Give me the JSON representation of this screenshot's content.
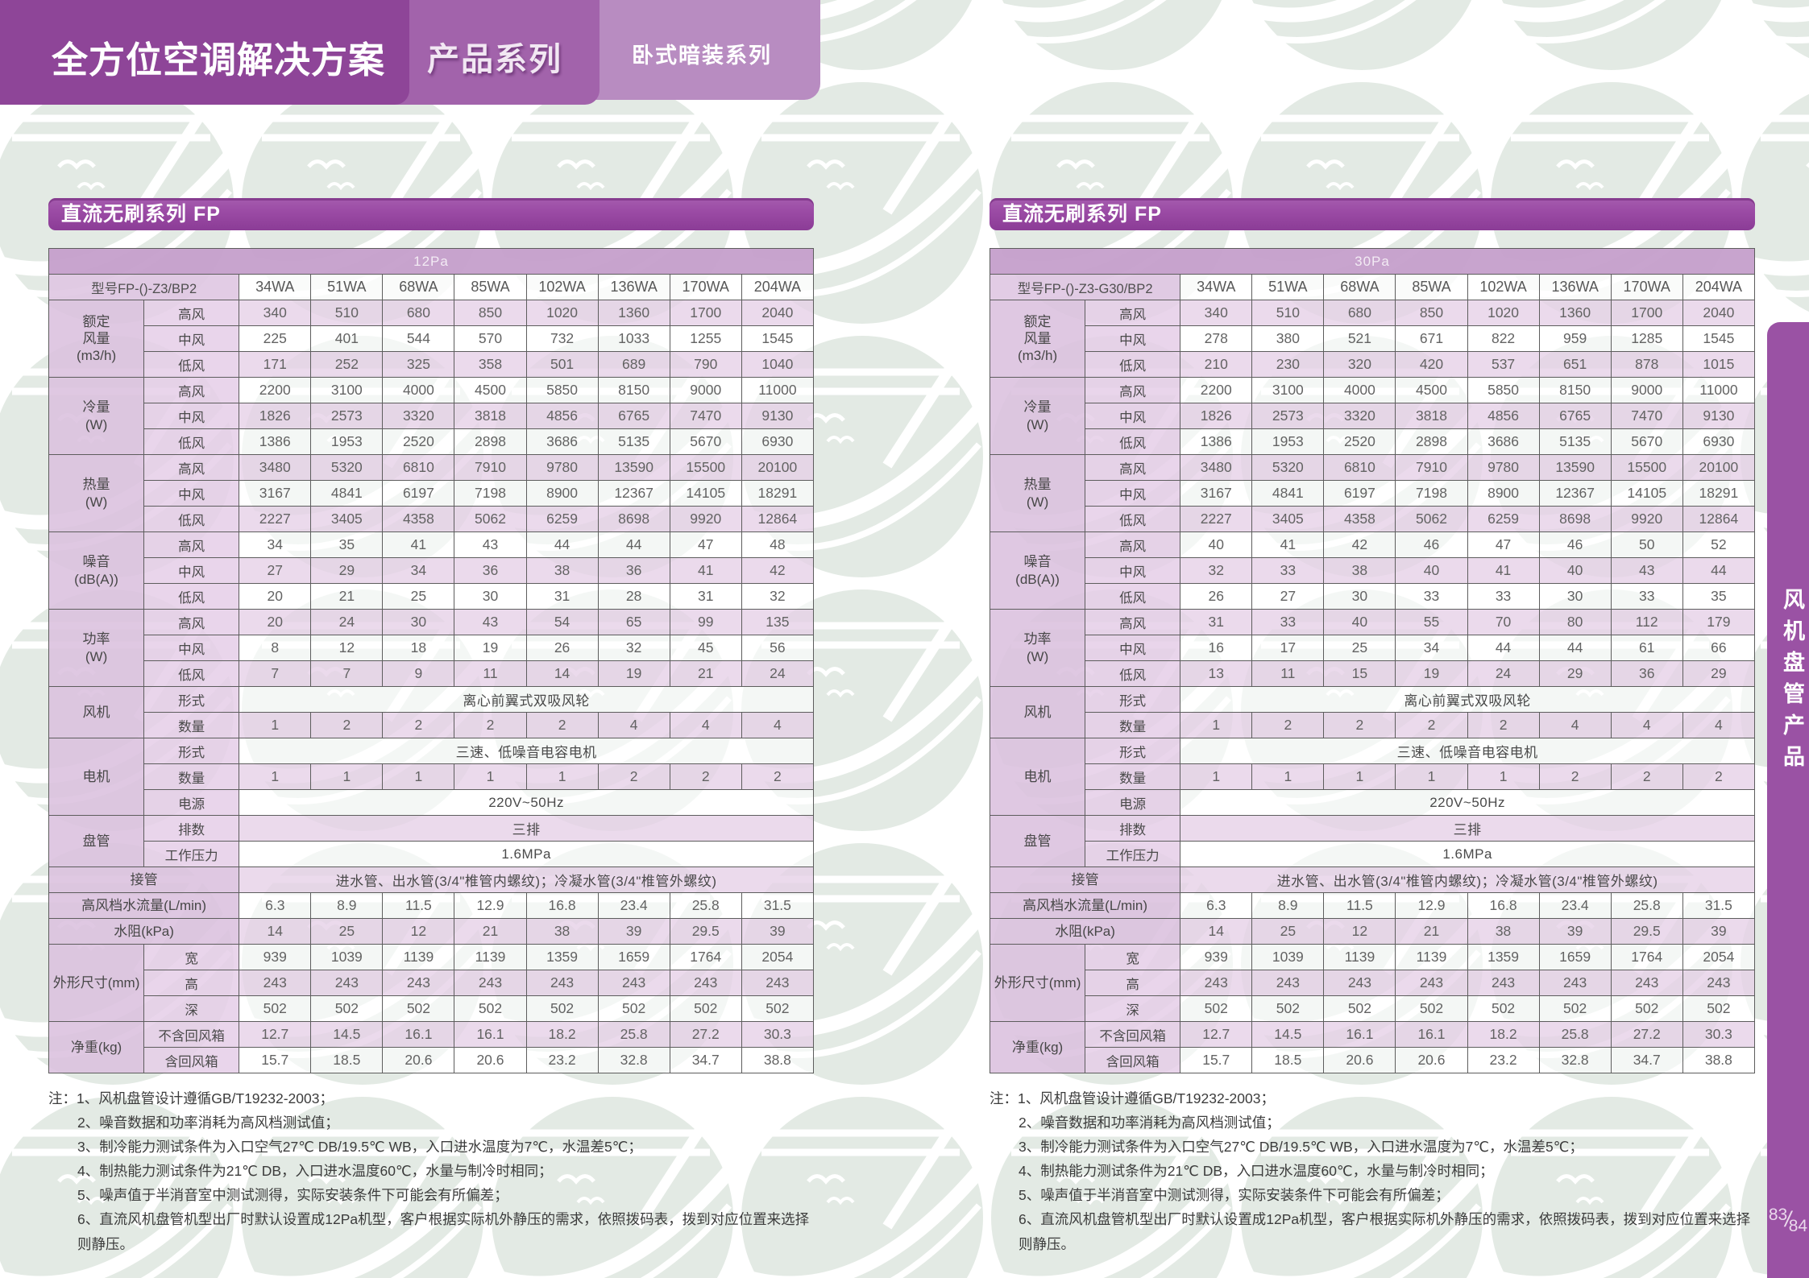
{
  "header": {
    "title": "全方位空调解决方案",
    "subtitle": "产品系列",
    "badge": "卧式暗装系列"
  },
  "side_tab": {
    "label": "风机盘管产品",
    "page_top": "83",
    "page_bottom": "84"
  },
  "notes": {
    "prefix": "注：",
    "items": [
      "1、风机盘管设计遵循GB/T19232-2003；",
      "2、噪音数据和功率消耗为高风档测试值；",
      "3、制冷能力测试条件为入口空气27℃ DB/19.5℃ WB，入口进水温度为7℃，水温差5℃；",
      "4、制热能力测试条件为21℃ DB，入口进水温度60℃，水量与制冷时相同；",
      "5、噪声值于半消音室中测试测得，实际安装条件下可能会有所偏差；",
      "6、直流风机盘管机型出厂时默认设置成12Pa机型，客户根据实际机外静压的需求，依照拨码表，拨到对应位置来选择则静压。"
    ]
  },
  "tables": [
    {
      "title": "直流无刷系列 FP",
      "pressure": "12Pa",
      "model": "型号FP-()-Z3/BP2",
      "columns": [
        "34WA",
        "51WA",
        "68WA",
        "85WA",
        "102WA",
        "136WA",
        "170WA",
        "204WA"
      ],
      "groups": [
        {
          "label": "额定\n风量\n(m3/h)",
          "rows": [
            {
              "sub": "高风",
              "values": [
                "340",
                "510",
                "680",
                "850",
                "1020",
                "1360",
                "1700",
                "2040"
              ]
            },
            {
              "sub": "中风",
              "values": [
                "225",
                "401",
                "544",
                "570",
                "732",
                "1033",
                "1255",
                "1545"
              ]
            },
            {
              "sub": "低风",
              "values": [
                "171",
                "252",
                "325",
                "358",
                "501",
                "689",
                "790",
                "1040"
              ]
            }
          ]
        },
        {
          "label": "冷量\n(W)",
          "rows": [
            {
              "sub": "高风",
              "values": [
                "2200",
                "3100",
                "4000",
                "4500",
                "5850",
                "8150",
                "9000",
                "11000"
              ]
            },
            {
              "sub": "中风",
              "values": [
                "1826",
                "2573",
                "3320",
                "3818",
                "4856",
                "6765",
                "7470",
                "9130"
              ]
            },
            {
              "sub": "低风",
              "values": [
                "1386",
                "1953",
                "2520",
                "2898",
                "3686",
                "5135",
                "5670",
                "6930"
              ]
            }
          ]
        },
        {
          "label": "热量\n(W)",
          "rows": [
            {
              "sub": "高风",
              "values": [
                "3480",
                "5320",
                "6810",
                "7910",
                "9780",
                "13590",
                "15500",
                "20100"
              ]
            },
            {
              "sub": "中风",
              "values": [
                "3167",
                "4841",
                "6197",
                "7198",
                "8900",
                "12367",
                "14105",
                "18291"
              ]
            },
            {
              "sub": "低风",
              "values": [
                "2227",
                "3405",
                "4358",
                "5062",
                "6259",
                "8698",
                "9920",
                "12864"
              ]
            }
          ]
        },
        {
          "label": "噪音\n(dB(A))",
          "rows": [
            {
              "sub": "高风",
              "values": [
                "34",
                "35",
                "41",
                "43",
                "44",
                "44",
                "47",
                "48"
              ]
            },
            {
              "sub": "中风",
              "values": [
                "27",
                "29",
                "34",
                "36",
                "38",
                "36",
                "41",
                "42"
              ]
            },
            {
              "sub": "低风",
              "values": [
                "20",
                "21",
                "25",
                "30",
                "31",
                "28",
                "31",
                "32"
              ]
            }
          ]
        },
        {
          "label": "功率\n(W)",
          "rows": [
            {
              "sub": "高风",
              "values": [
                "20",
                "24",
                "30",
                "43",
                "54",
                "65",
                "99",
                "135"
              ]
            },
            {
              "sub": "中风",
              "values": [
                "8",
                "12",
                "18",
                "19",
                "26",
                "32",
                "45",
                "56"
              ]
            },
            {
              "sub": "低风",
              "values": [
                "7",
                "7",
                "9",
                "11",
                "14",
                "19",
                "21",
                "24"
              ]
            }
          ]
        },
        {
          "label": "风机",
          "rows": [
            {
              "sub": "形式",
              "span": "离心前翼式双吸风轮"
            },
            {
              "sub": "数量",
              "values": [
                "1",
                "2",
                "2",
                "2",
                "2",
                "4",
                "4",
                "4"
              ]
            }
          ]
        },
        {
          "label": "电机",
          "rows": [
            {
              "sub": "形式",
              "span": "三速、低噪音电容电机"
            },
            {
              "sub": "数量",
              "values": [
                "1",
                "1",
                "1",
                "1",
                "1",
                "2",
                "2",
                "2"
              ]
            },
            {
              "sub": "电源",
              "span": "220V~50Hz"
            }
          ]
        },
        {
          "label": "盘管",
          "rows": [
            {
              "sub": "排数",
              "span": "三排"
            },
            {
              "sub": "工作压力",
              "span": "1.6MPa"
            }
          ]
        },
        {
          "label": "接管",
          "wide": true,
          "span": "进水管、出水管(3/4\"椎管内螺纹)；冷凝水管(3/4\"椎管外螺纹)"
        },
        {
          "label": "高风档水流量(L/min)",
          "wide": true,
          "values": [
            "6.3",
            "8.9",
            "11.5",
            "12.9",
            "16.8",
            "23.4",
            "25.8",
            "31.5"
          ]
        },
        {
          "label": "水阻(kPa)",
          "wide": true,
          "values": [
            "14",
            "25",
            "12",
            "21",
            "38",
            "39",
            "29.5",
            "39"
          ]
        },
        {
          "label": "外形尺寸(mm)",
          "rows": [
            {
              "sub": "宽",
              "values": [
                "939",
                "1039",
                "1139",
                "1139",
                "1359",
                "1659",
                "1764",
                "2054"
              ]
            },
            {
              "sub": "高",
              "values": [
                "243",
                "243",
                "243",
                "243",
                "243",
                "243",
                "243",
                "243"
              ]
            },
            {
              "sub": "深",
              "values": [
                "502",
                "502",
                "502",
                "502",
                "502",
                "502",
                "502",
                "502"
              ]
            }
          ]
        },
        {
          "label": "净重(kg)",
          "rows": [
            {
              "sub": "不含回风箱",
              "values": [
                "12.7",
                "14.5",
                "16.1",
                "16.1",
                "18.2",
                "25.8",
                "27.2",
                "30.3"
              ]
            },
            {
              "sub": "含回风箱",
              "values": [
                "15.7",
                "18.5",
                "20.6",
                "20.6",
                "23.2",
                "32.8",
                "34.7",
                "38.8"
              ]
            }
          ]
        }
      ]
    },
    {
      "title": "直流无刷系列 FP",
      "pressure": "30Pa",
      "model": "型号FP-()-Z3-G30/BP2",
      "columns": [
        "34WA",
        "51WA",
        "68WA",
        "85WA",
        "102WA",
        "136WA",
        "170WA",
        "204WA"
      ],
      "groups": [
        {
          "label": "额定\n风量\n(m3/h)",
          "rows": [
            {
              "sub": "高风",
              "values": [
                "340",
                "510",
                "680",
                "850",
                "1020",
                "1360",
                "1700",
                "2040"
              ]
            },
            {
              "sub": "中风",
              "values": [
                "278",
                "380",
                "521",
                "671",
                "822",
                "959",
                "1285",
                "1545"
              ]
            },
            {
              "sub": "低风",
              "values": [
                "210",
                "230",
                "320",
                "420",
                "537",
                "651",
                "878",
                "1015"
              ]
            }
          ]
        },
        {
          "label": "冷量\n(W)",
          "rows": [
            {
              "sub": "高风",
              "values": [
                "2200",
                "3100",
                "4000",
                "4500",
                "5850",
                "8150",
                "9000",
                "11000"
              ]
            },
            {
              "sub": "中风",
              "values": [
                "1826",
                "2573",
                "3320",
                "3818",
                "4856",
                "6765",
                "7470",
                "9130"
              ]
            },
            {
              "sub": "低风",
              "values": [
                "1386",
                "1953",
                "2520",
                "2898",
                "3686",
                "5135",
                "5670",
                "6930"
              ]
            }
          ]
        },
        {
          "label": "热量\n(W)",
          "rows": [
            {
              "sub": "高风",
              "values": [
                "3480",
                "5320",
                "6810",
                "7910",
                "9780",
                "13590",
                "15500",
                "20100"
              ]
            },
            {
              "sub": "中风",
              "values": [
                "3167",
                "4841",
                "6197",
                "7198",
                "8900",
                "12367",
                "14105",
                "18291"
              ]
            },
            {
              "sub": "低风",
              "values": [
                "2227",
                "3405",
                "4358",
                "5062",
                "6259",
                "8698",
                "9920",
                "12864"
              ]
            }
          ]
        },
        {
          "label": "噪音\n(dB(A))",
          "rows": [
            {
              "sub": "高风",
              "values": [
                "40",
                "41",
                "42",
                "46",
                "47",
                "46",
                "50",
                "52"
              ]
            },
            {
              "sub": "中风",
              "values": [
                "32",
                "33",
                "38",
                "40",
                "41",
                "40",
                "43",
                "44"
              ]
            },
            {
              "sub": "低风",
              "values": [
                "26",
                "27",
                "30",
                "33",
                "33",
                "30",
                "33",
                "35"
              ]
            }
          ]
        },
        {
          "label": "功率\n(W)",
          "rows": [
            {
              "sub": "高风",
              "values": [
                "31",
                "33",
                "40",
                "55",
                "70",
                "80",
                "112",
                "179"
              ]
            },
            {
              "sub": "中风",
              "values": [
                "16",
                "17",
                "25",
                "34",
                "44",
                "44",
                "61",
                "66"
              ]
            },
            {
              "sub": "低风",
              "values": [
                "13",
                "11",
                "15",
                "19",
                "24",
                "29",
                "36",
                "29"
              ]
            }
          ]
        },
        {
          "label": "风机",
          "rows": [
            {
              "sub": "形式",
              "span": "离心前翼式双吸风轮"
            },
            {
              "sub": "数量",
              "values": [
                "1",
                "2",
                "2",
                "2",
                "2",
                "4",
                "4",
                "4"
              ]
            }
          ]
        },
        {
          "label": "电机",
          "rows": [
            {
              "sub": "形式",
              "span": "三速、低噪音电容电机"
            },
            {
              "sub": "数量",
              "values": [
                "1",
                "1",
                "1",
                "1",
                "1",
                "2",
                "2",
                "2"
              ]
            },
            {
              "sub": "电源",
              "span": "220V~50Hz"
            }
          ]
        },
        {
          "label": "盘管",
          "rows": [
            {
              "sub": "排数",
              "span": "三排"
            },
            {
              "sub": "工作压力",
              "span": "1.6MPa"
            }
          ]
        },
        {
          "label": "接管",
          "wide": true,
          "span": "进水管、出水管(3/4\"椎管内螺纹)；冷凝水管(3/4\"椎管外螺纹)"
        },
        {
          "label": "高风档水流量(L/min)",
          "wide": true,
          "values": [
            "6.3",
            "8.9",
            "11.5",
            "12.9",
            "16.8",
            "23.4",
            "25.8",
            "31.5"
          ]
        },
        {
          "label": "水阻(kPa)",
          "wide": true,
          "values": [
            "14",
            "25",
            "12",
            "21",
            "38",
            "39",
            "29.5",
            "39"
          ]
        },
        {
          "label": "外形尺寸(mm)",
          "rows": [
            {
              "sub": "宽",
              "values": [
                "939",
                "1039",
                "1139",
                "1139",
                "1359",
                "1659",
                "1764",
                "2054"
              ]
            },
            {
              "sub": "高",
              "values": [
                "243",
                "243",
                "243",
                "243",
                "243",
                "243",
                "243",
                "243"
              ]
            },
            {
              "sub": "深",
              "values": [
                "502",
                "502",
                "502",
                "502",
                "502",
                "502",
                "502",
                "502"
              ]
            }
          ]
        },
        {
          "label": "净重(kg)",
          "rows": [
            {
              "sub": "不含回风箱",
              "values": [
                "12.7",
                "14.5",
                "16.1",
                "16.1",
                "18.2",
                "25.8",
                "27.2",
                "30.3"
              ]
            },
            {
              "sub": "含回风箱",
              "values": [
                "15.7",
                "18.5",
                "20.6",
                "20.6",
                "23.2",
                "32.8",
                "34.7",
                "38.8"
              ]
            }
          ]
        }
      ]
    }
  ]
}
